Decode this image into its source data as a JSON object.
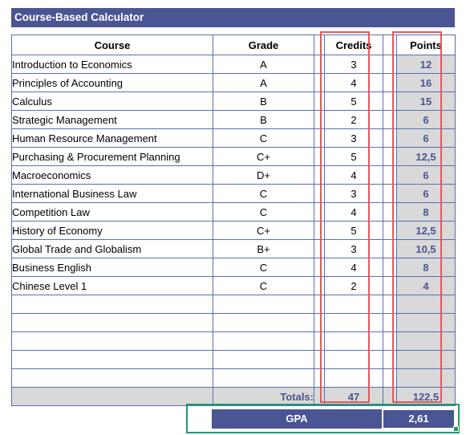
{
  "title": "Course-Based Calculator",
  "columns": {
    "course": "Course",
    "grade": "Grade",
    "credits": "Credits",
    "points": "Points"
  },
  "rows": [
    {
      "course": "Introduction to Economics",
      "grade": "A",
      "credits": "3",
      "points": "12"
    },
    {
      "course": "Principles of Accounting",
      "grade": "A",
      "credits": "4",
      "points": "16"
    },
    {
      "course": "Calculus",
      "grade": "B",
      "credits": "5",
      "points": "15"
    },
    {
      "course": "Strategic Management",
      "grade": "B",
      "credits": "2",
      "points": "6"
    },
    {
      "course": "Human Resource Management",
      "grade": "C",
      "credits": "3",
      "points": "6"
    },
    {
      "course": "Purchasing & Procurement Planning",
      "grade": "C+",
      "credits": "5",
      "points": "12,5"
    },
    {
      "course": "Macroeconomics",
      "grade": "D+",
      "credits": "4",
      "points": "6"
    },
    {
      "course": "International Business Law",
      "grade": "C",
      "credits": "3",
      "points": "6"
    },
    {
      "course": "Competition Law",
      "grade": "C",
      "credits": "4",
      "points": "8"
    },
    {
      "course": "History of Economy",
      "grade": "C+",
      "credits": "5",
      "points": "12,5"
    },
    {
      "course": "Global Trade and Globalism",
      "grade": "B+",
      "credits": "3",
      "points": "10,5"
    },
    {
      "course": "Business English",
      "grade": "C",
      "credits": "4",
      "points": "8"
    },
    {
      "course": "Chinese Level 1",
      "grade": "C",
      "credits": "2",
      "points": "4"
    },
    {
      "course": "",
      "grade": "",
      "credits": "",
      "points": ""
    },
    {
      "course": "",
      "grade": "",
      "credits": "",
      "points": ""
    },
    {
      "course": "",
      "grade": "",
      "credits": "",
      "points": ""
    },
    {
      "course": "",
      "grade": "",
      "credits": "",
      "points": ""
    },
    {
      "course": "",
      "grade": "",
      "credits": "",
      "points": ""
    }
  ],
  "totals": {
    "label": "Totals:",
    "credits": "47",
    "points": "122,5"
  },
  "gpa": {
    "label": "GPA",
    "value": "2,61"
  },
  "colors": {
    "header_fill": "#4a5593",
    "points_fill": "#d9d9d9",
    "highlight_border": "#e2585f",
    "selection_border": "#1e9b6a"
  }
}
